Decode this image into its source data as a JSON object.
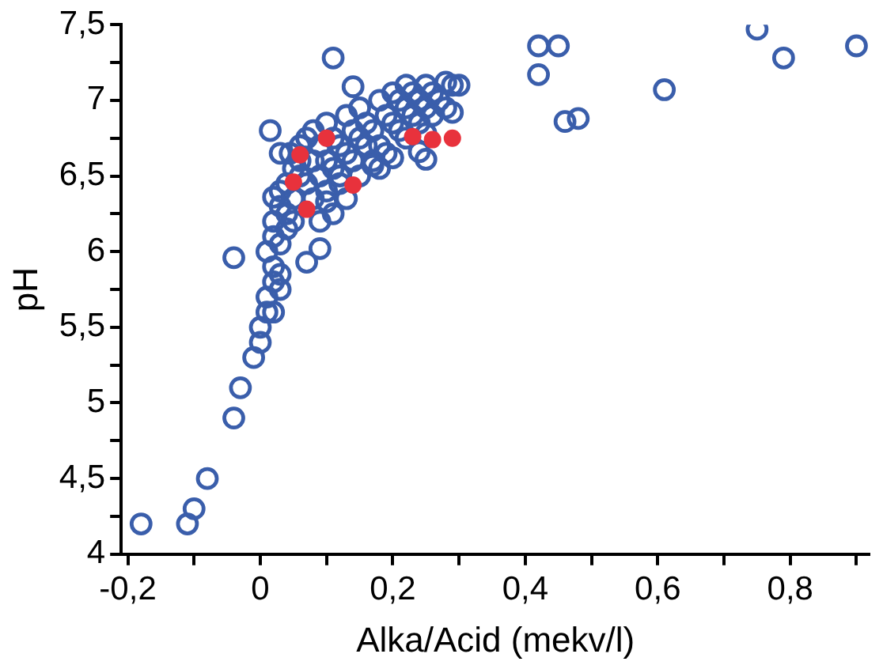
{
  "chart_data": {
    "type": "scatter",
    "xlabel": "Alka/Acid (mekv/l)",
    "ylabel": "pH",
    "xlim": [
      -0.21,
      0.92
    ],
    "ylim": [
      4,
      7.5
    ],
    "xticks": [
      {
        "value": -0.2,
        "label": "-0,2"
      },
      {
        "value": -0.1,
        "label": null
      },
      0,
      {
        "value": 0.1,
        "label": null
      },
      {
        "value": 0.2,
        "label": "0,2"
      },
      {
        "value": 0.3,
        "label": null
      },
      {
        "value": 0.4,
        "label": "0,4"
      },
      {
        "value": 0.5,
        "label": null
      },
      {
        "value": 0.6,
        "label": "0,6"
      },
      {
        "value": 0.7,
        "label": null
      },
      {
        "value": 0.8,
        "label": "0,8"
      },
      {
        "value": 0.9,
        "label": null
      }
    ],
    "yticks": [
      4,
      {
        "value": 4.25,
        "label": null
      },
      {
        "value": 4.5,
        "label": "4,5"
      },
      {
        "value": 4.75,
        "label": null
      },
      5,
      {
        "value": 5.25,
        "label": null
      },
      {
        "value": 5.5,
        "label": "5,5"
      },
      {
        "value": 5.75,
        "label": null
      },
      6,
      {
        "value": 6.25,
        "label": null
      },
      {
        "value": 6.5,
        "label": "6,5"
      },
      {
        "value": 6.75,
        "label": null
      },
      7,
      {
        "value": 7.25,
        "label": null
      },
      {
        "value": 7.5,
        "label": "7,5"
      }
    ],
    "grid": false,
    "legend": false,
    "marker": "circle",
    "series": [
      {
        "color": "#3a5eab",
        "x": [
          -0.18,
          -0.11,
          -0.1,
          -0.08,
          -0.04,
          -0.03,
          -0.01,
          0,
          0,
          0.01,
          0.01,
          0.02,
          0.02,
          0.02,
          0.03,
          0.03,
          0.01,
          0.02,
          0.03,
          0.04,
          0.02,
          0.03,
          0.04,
          0.05,
          0.03,
          0.04,
          0.05,
          0.06,
          -0.04,
          0.07,
          0.09,
          0.1,
          0.02,
          0.03,
          0.045,
          0.015,
          0.11,
          0.14,
          0.05,
          0.06,
          0.07,
          0.08,
          0.06,
          0.07,
          0.08,
          0.09,
          0.1,
          0.08,
          0.09,
          0.1,
          0.11,
          0.12,
          0.1,
          0.11,
          0.12,
          0.13,
          0.14,
          0.13,
          0.14,
          0.15,
          0.16,
          0.17,
          0.15,
          0.16,
          0.17,
          0.18,
          0.19,
          0.18,
          0.19,
          0.2,
          0.21,
          0.22,
          0.2,
          0.21,
          0.22,
          0.23,
          0.24,
          0.22,
          0.23,
          0.24,
          0.25,
          0.26,
          0.25,
          0.26,
          0.27,
          0.28,
          0.29,
          0.28,
          0.3,
          0.17,
          0.24,
          0.25,
          0.25,
          0.29,
          0.42,
          0.45,
          0.42,
          0.46,
          0.48,
          0.61,
          0.75,
          0.79,
          0.9,
          0.12,
          0.13,
          0.15,
          0.18,
          0.2,
          0.11,
          0.09
        ],
        "values": [
          4.2,
          4.2,
          4.3,
          4.5,
          4.9,
          5.1,
          5.3,
          5.4,
          5.5,
          5.6,
          5.7,
          5.6,
          5.8,
          5.9,
          5.75,
          5.85,
          6.0,
          6.1,
          6.05,
          6.15,
          6.2,
          6.3,
          6.25,
          6.2,
          6.4,
          6.45,
          6.35,
          6.5,
          5.96,
          5.93,
          6.02,
          6.33,
          6.36,
          6.65,
          6.65,
          6.8,
          7.28,
          7.09,
          6.55,
          6.6,
          6.45,
          6.35,
          6.7,
          6.75,
          6.6,
          6.5,
          6.4,
          6.8,
          6.7,
          6.6,
          6.55,
          6.45,
          6.85,
          6.75,
          6.7,
          6.65,
          6.6,
          6.9,
          6.8,
          6.75,
          6.7,
          6.6,
          6.95,
          6.85,
          6.8,
          6.7,
          6.65,
          7.0,
          6.9,
          6.85,
          6.8,
          6.75,
          7.05,
          7.0,
          6.95,
          6.9,
          6.85,
          7.1,
          7.05,
          7.0,
          6.95,
          6.9,
          7.1,
          7.05,
          7.0,
          6.95,
          7.1,
          7.12,
          7.1,
          6.57,
          6.66,
          6.61,
          6.78,
          6.92,
          7.36,
          7.36,
          7.17,
          6.86,
          6.88,
          7.07,
          7.47,
          7.28,
          7.36,
          6.5,
          6.35,
          6.5,
          6.55,
          6.62,
          6.25,
          6.2
        ]
      },
      {
        "color": "#e8323c",
        "x": [
          0.23,
          0.26,
          0.29,
          0.14,
          0.06,
          0.1,
          0.05,
          0.07
        ],
        "values": [
          6.76,
          6.74,
          6.75,
          6.44,
          6.64,
          6.75,
          6.46,
          6.28
        ]
      }
    ]
  }
}
